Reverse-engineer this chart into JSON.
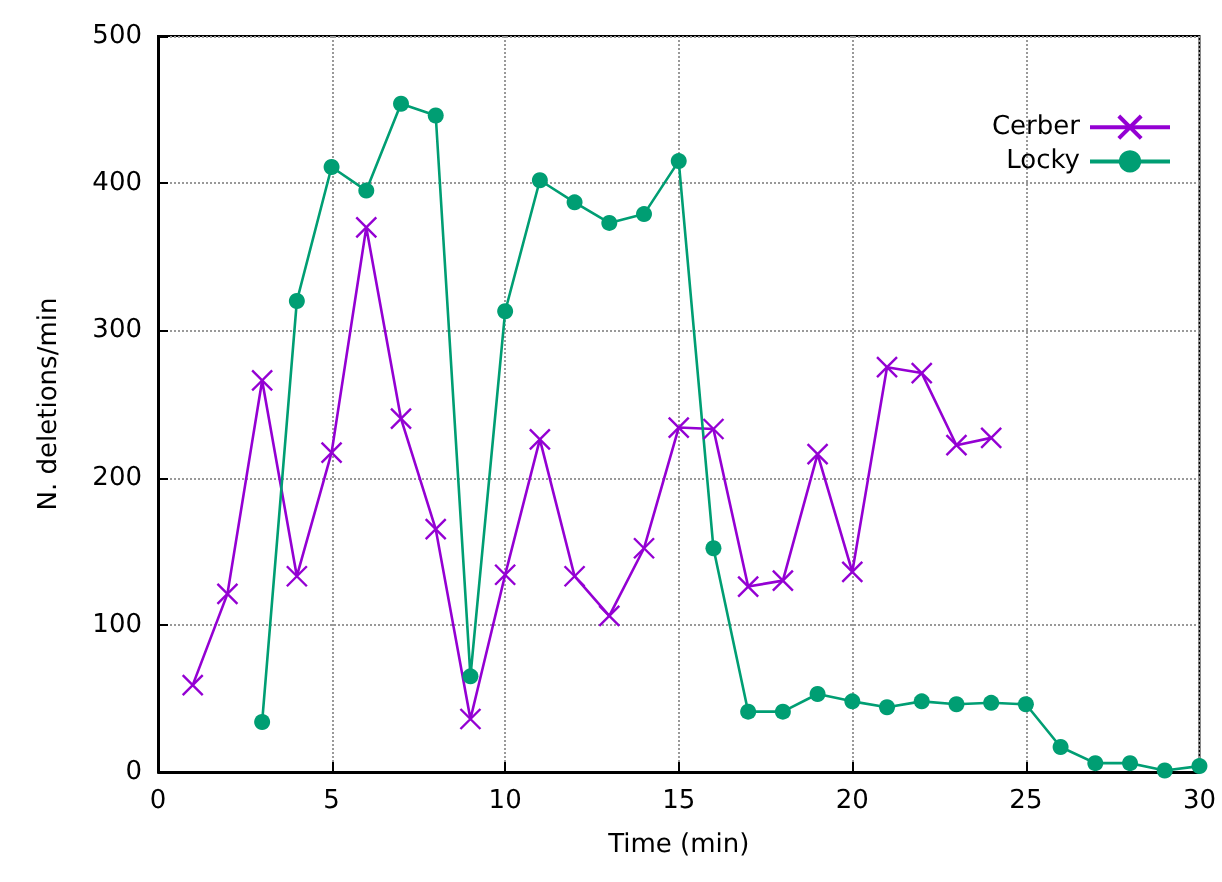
{
  "chart_data": {
    "type": "line",
    "xlabel": "Time (min)",
    "ylabel": "N. deletions/min",
    "xlim": [
      0,
      30
    ],
    "xticks": [
      0,
      5,
      10,
      15,
      20,
      25,
      30
    ],
    "ylim": [
      0,
      500
    ],
    "yticks": [
      0,
      100,
      200,
      300,
      400,
      500
    ],
    "grid": true,
    "legend": "top right",
    "series": [
      {
        "name": "Cerber",
        "color": "#9400d3",
        "marker": "cross",
        "x": [
          1,
          2,
          3,
          4,
          5,
          6,
          7,
          8,
          9,
          10,
          11,
          12,
          13,
          14,
          15,
          16,
          17,
          18,
          19,
          20,
          21,
          22,
          23,
          24
        ],
        "values": [
          59,
          121,
          266,
          133,
          217,
          370,
          240,
          165,
          36,
          134,
          226,
          133,
          106,
          152,
          234,
          233,
          126,
          130,
          216,
          136,
          275,
          271,
          222,
          227
        ]
      },
      {
        "name": "Locky",
        "color": "#009e73",
        "marker": "circle",
        "x": [
          3,
          4,
          5,
          6,
          7,
          8,
          9,
          10,
          11,
          12,
          13,
          14,
          15,
          16,
          17,
          18,
          19,
          20,
          21,
          22,
          23,
          24,
          25,
          26,
          27,
          28,
          29,
          30
        ],
        "values": [
          34,
          320,
          411,
          395,
          454,
          446,
          65,
          313,
          402,
          387,
          373,
          379,
          415,
          152,
          41,
          41,
          53,
          48,
          44,
          48,
          46,
          47,
          46,
          17,
          6,
          6,
          1,
          4
        ]
      }
    ]
  }
}
